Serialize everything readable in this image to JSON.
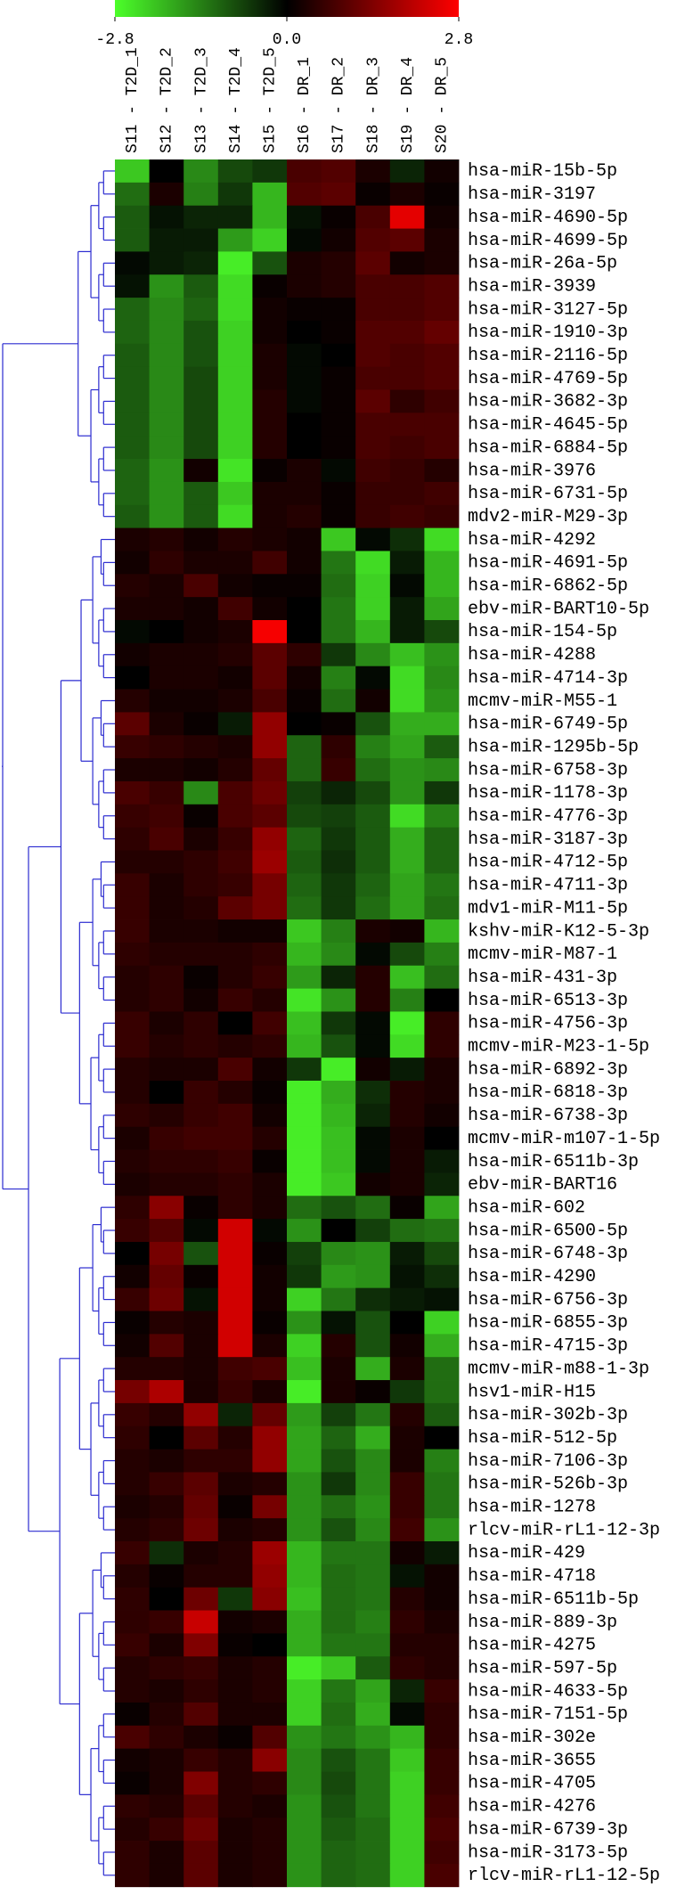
{
  "chart_data": {
    "type": "heatmap",
    "x_categories": [
      "S11 - T2D_1",
      "S12 - T2D_2",
      "S13 - T2D_3",
      "S14 - T2D_4",
      "S15 - T2D_5",
      "S16 - DR_1",
      "S17 - DR_2",
      "S18 - DR_3",
      "S19 - DR_4",
      "S20 - DR_5"
    ],
    "y_categories": [
      "hsa-miR-15b-5p",
      "hsa-miR-3197",
      "hsa-miR-4690-5p",
      "hsa-miR-4699-5p",
      "hsa-miR-26a-5p",
      "hsa-miR-3939",
      "hsa-miR-3127-5p",
      "hsa-miR-1910-3p",
      "hsa-miR-2116-5p",
      "hsa-miR-4769-5p",
      "hsa-miR-3682-3p",
      "hsa-miR-4645-5p",
      "hsa-miR-6884-5p",
      "hsa-miR-3976",
      "hsa-miR-6731-5p",
      "mdv2-miR-M29-3p",
      "hsa-miR-4292",
      "hsa-miR-4691-5p",
      "hsa-miR-6862-5p",
      "ebv-miR-BART10-5p",
      "hsa-miR-154-5p",
      "hsa-miR-4288",
      "hsa-miR-4714-3p",
      "mcmv-miR-M55-1",
      "hsa-miR-6749-5p",
      "hsa-miR-1295b-5p",
      "hsa-miR-6758-3p",
      "hsa-miR-1178-3p",
      "hsa-miR-4776-3p",
      "hsa-miR-3187-3p",
      "hsa-miR-4712-5p",
      "hsa-miR-4711-3p",
      "mdv1-miR-M11-5p",
      "kshv-miR-K12-5-3p",
      "mcmv-miR-M87-1",
      "hsa-miR-431-3p",
      "hsa-miR-6513-3p",
      "hsa-miR-4756-3p",
      "mcmv-miR-M23-1-5p",
      "hsa-miR-6892-3p",
      "hsa-miR-6818-3p",
      "hsa-miR-6738-3p",
      "mcmv-miR-m107-1-5p",
      "hsa-miR-6511b-3p",
      "ebv-miR-BART16",
      "hsa-miR-602",
      "hsa-miR-6500-5p",
      "hsa-miR-6748-3p",
      "hsa-miR-4290",
      "hsa-miR-6756-3p",
      "hsa-miR-6855-3p",
      "hsa-miR-4715-3p",
      "mcmv-miR-m88-1-3p",
      "hsv1-miR-H15",
      "hsa-miR-302b-3p",
      "hsa-miR-512-5p",
      "hsa-miR-7106-3p",
      "hsa-miR-526b-3p",
      "hsa-miR-1278",
      "rlcv-miR-rL1-12-3p",
      "hsa-miR-429",
      "hsa-miR-4718",
      "hsa-miR-6511b-5p",
      "hsa-miR-889-3p",
      "hsa-miR-4275",
      "hsa-miR-597-5p",
      "hsa-miR-4633-5p",
      "hsa-miR-7151-5p",
      "hsa-miR-302e",
      "hsa-miR-3655",
      "hsa-miR-4705",
      "hsa-miR-4276",
      "hsa-miR-6739-3p",
      "hsa-miR-3173-5p",
      "rlcv-miR-rL1-12-5p"
    ],
    "values": [
      [
        -2.2,
        0.0,
        -1.5,
        -0.8,
        -0.6,
        0.8,
        0.9,
        0.3,
        -0.4,
        0.2
      ],
      [
        -1.2,
        0.3,
        -1.4,
        -0.6,
        -2.0,
        0.9,
        1.0,
        0.1,
        0.3,
        0.1
      ],
      [
        -1.0,
        -0.2,
        -0.4,
        -0.4,
        -2.0,
        -0.2,
        0.1,
        0.8,
        2.5,
        0.2
      ],
      [
        -1.0,
        -0.3,
        -0.3,
        -1.7,
        -2.3,
        -0.1,
        0.2,
        0.9,
        1.0,
        0.3
      ],
      [
        -0.1,
        -0.3,
        -0.4,
        -2.6,
        -0.9,
        0.3,
        0.4,
        1.0,
        0.2,
        0.3
      ],
      [
        -0.2,
        -1.6,
        -1.0,
        -2.4,
        0.1,
        0.3,
        0.4,
        0.8,
        0.8,
        0.9
      ],
      [
        -1.1,
        -1.5,
        -1.1,
        -2.4,
        0.2,
        0.1,
        0.1,
        0.8,
        0.8,
        0.9
      ],
      [
        -1.1,
        -1.5,
        -0.9,
        -2.3,
        0.2,
        0.0,
        0.1,
        0.9,
        0.9,
        1.1
      ],
      [
        -1.0,
        -1.5,
        -0.9,
        -2.3,
        0.3,
        -0.1,
        0.0,
        0.9,
        0.8,
        0.9
      ],
      [
        -1.0,
        -1.5,
        -0.8,
        -2.3,
        0.3,
        -0.1,
        0.1,
        0.8,
        0.8,
        0.9
      ],
      [
        -1.0,
        -1.5,
        -0.8,
        -2.3,
        0.4,
        -0.1,
        0.1,
        1.0,
        0.5,
        0.7
      ],
      [
        -1.0,
        -1.5,
        -0.8,
        -2.3,
        0.4,
        0.0,
        0.1,
        0.8,
        0.8,
        0.8
      ],
      [
        -1.0,
        -1.5,
        -0.8,
        -2.3,
        0.4,
        0.0,
        0.1,
        0.8,
        0.7,
        0.8
      ],
      [
        -1.1,
        -1.6,
        0.2,
        -2.5,
        0.1,
        0.3,
        -0.1,
        0.7,
        0.6,
        0.4
      ],
      [
        -1.1,
        -1.6,
        -1.0,
        -2.2,
        0.3,
        0.3,
        0.1,
        0.6,
        0.6,
        0.7
      ],
      [
        -1.0,
        -1.6,
        -1.0,
        -2.4,
        0.3,
        0.4,
        0.1,
        0.6,
        0.7,
        0.6
      ],
      [
        0.3,
        0.4,
        0.2,
        0.4,
        0.3,
        0.2,
        -2.2,
        -0.1,
        -0.5,
        -2.4
      ],
      [
        0.2,
        0.5,
        0.3,
        0.3,
        0.7,
        0.2,
        -1.3,
        -2.4,
        -0.3,
        -2.0
      ],
      [
        0.4,
        0.3,
        0.8,
        0.2,
        0.1,
        0.1,
        -1.2,
        -2.3,
        -0.1,
        -2.0
      ],
      [
        0.3,
        0.3,
        0.2,
        0.7,
        0.2,
        0.0,
        -1.3,
        -2.3,
        -0.3,
        -1.8
      ],
      [
        -0.1,
        0.0,
        0.2,
        0.3,
        2.7,
        0.0,
        -1.3,
        -2.0,
        -0.3,
        -0.8
      ],
      [
        0.2,
        0.3,
        0.3,
        0.4,
        1.0,
        0.5,
        -0.6,
        -1.5,
        -2.1,
        -1.6
      ],
      [
        0.0,
        0.3,
        0.3,
        0.2,
        1.0,
        0.2,
        -1.4,
        -0.1,
        -2.4,
        -1.5
      ],
      [
        0.4,
        0.2,
        0.2,
        0.3,
        0.8,
        0.1,
        -1.2,
        0.2,
        -2.4,
        -1.6
      ],
      [
        1.0,
        0.3,
        0.1,
        -0.3,
        1.6,
        0.0,
        0.1,
        -0.9,
        -1.9,
        -1.9
      ],
      [
        0.6,
        0.5,
        0.4,
        0.3,
        1.6,
        -1.1,
        0.5,
        -1.4,
        -1.8,
        -1.0
      ],
      [
        0.3,
        0.3,
        0.2,
        0.4,
        1.1,
        -1.1,
        0.6,
        -1.2,
        -1.6,
        -1.5
      ],
      [
        0.8,
        0.6,
        -1.5,
        0.8,
        1.2,
        -0.7,
        -0.4,
        -0.8,
        -1.6,
        -0.6
      ],
      [
        0.6,
        0.7,
        0.1,
        0.8,
        1.0,
        -0.8,
        -0.7,
        -1.0,
        -2.4,
        -1.4
      ],
      [
        0.5,
        0.8,
        0.3,
        0.6,
        1.6,
        -1.1,
        -0.6,
        -1.0,
        -1.9,
        -1.1
      ],
      [
        0.4,
        0.4,
        0.5,
        0.7,
        1.7,
        -1.0,
        -0.5,
        -1.0,
        -1.9,
        -1.1
      ],
      [
        0.6,
        0.3,
        0.5,
        0.6,
        1.3,
        -1.1,
        -0.6,
        -1.1,
        -1.8,
        -1.3
      ],
      [
        0.6,
        0.3,
        0.4,
        1.0,
        1.3,
        -1.2,
        -0.6,
        -1.2,
        -1.8,
        -1.2
      ],
      [
        0.6,
        0.3,
        0.3,
        0.2,
        0.2,
        -2.2,
        -1.4,
        0.3,
        0.2,
        -2.0
      ],
      [
        0.5,
        0.4,
        0.4,
        0.4,
        0.5,
        -2.0,
        -1.5,
        -0.1,
        -0.8,
        -1.4
      ],
      [
        0.4,
        0.5,
        0.1,
        0.4,
        0.6,
        -1.7,
        -0.4,
        0.4,
        -2.1,
        -1.2
      ],
      [
        0.4,
        0.5,
        0.2,
        0.6,
        0.4,
        -2.5,
        -1.6,
        0.4,
        -1.4,
        0.0
      ],
      [
        0.6,
        0.3,
        0.5,
        0.0,
        0.7,
        -2.1,
        -0.6,
        -0.1,
        -2.6,
        0.5
      ],
      [
        0.6,
        0.4,
        0.5,
        0.4,
        0.5,
        -2.0,
        -0.9,
        -0.1,
        -2.4,
        0.5
      ],
      [
        0.4,
        0.3,
        0.3,
        0.8,
        0.2,
        -0.6,
        -2.6,
        0.2,
        -0.3,
        0.3
      ],
      [
        0.4,
        0.0,
        0.6,
        0.4,
        0.1,
        -2.6,
        -1.9,
        -0.5,
        0.4,
        0.3
      ],
      [
        0.5,
        0.4,
        0.6,
        0.7,
        0.2,
        -2.6,
        -2.0,
        -0.4,
        0.4,
        0.2
      ],
      [
        0.3,
        0.6,
        0.7,
        0.7,
        0.4,
        -2.6,
        -2.1,
        -0.1,
        0.3,
        0.0
      ],
      [
        0.4,
        0.5,
        0.5,
        0.6,
        0.1,
        -2.6,
        -2.1,
        -0.1,
        0.3,
        -0.3
      ],
      [
        0.3,
        0.4,
        0.4,
        0.5,
        0.3,
        -2.6,
        -2.2,
        0.2,
        0.3,
        -0.4
      ],
      [
        0.5,
        1.5,
        0.1,
        0.5,
        0.3,
        -1.2,
        -0.9,
        -1.2,
        0.1,
        -1.8
      ],
      [
        0.6,
        0.9,
        -0.1,
        2.3,
        -0.1,
        -1.6,
        0.0,
        -0.7,
        -1.2,
        -1.3
      ],
      [
        0.0,
        1.3,
        -0.9,
        2.3,
        0.1,
        -0.7,
        -1.5,
        -1.6,
        -0.3,
        -0.8
      ],
      [
        0.2,
        1.1,
        0.1,
        2.3,
        0.2,
        -0.6,
        -1.7,
        -1.6,
        -0.2,
        -0.5
      ],
      [
        0.6,
        1.2,
        -0.2,
        2.3,
        0.2,
        -2.3,
        -1.3,
        -0.5,
        -0.3,
        -0.2
      ],
      [
        0.1,
        0.4,
        0.3,
        2.3,
        0.1,
        -1.6,
        -0.2,
        -0.9,
        0.0,
        -2.3
      ],
      [
        0.2,
        0.9,
        0.3,
        2.3,
        0.3,
        -2.3,
        0.4,
        -0.9,
        0.2,
        -1.9
      ],
      [
        0.4,
        0.4,
        0.3,
        0.7,
        0.8,
        -2.1,
        0.3,
        -1.9,
        0.3,
        -1.2
      ],
      [
        1.3,
        1.9,
        0.3,
        0.6,
        0.3,
        -2.6,
        0.3,
        0.1,
        -0.6,
        -1.2
      ],
      [
        0.6,
        0.4,
        1.6,
        -0.4,
        1.1,
        -1.7,
        -0.7,
        -1.3,
        0.4,
        -1.0
      ],
      [
        0.5,
        0.0,
        1.0,
        0.4,
        1.6,
        -1.8,
        -1.1,
        -1.9,
        0.3,
        0.0
      ],
      [
        0.4,
        0.3,
        0.5,
        0.5,
        1.6,
        -1.8,
        -0.9,
        -1.5,
        0.3,
        -1.4
      ],
      [
        0.4,
        0.6,
        1.0,
        0.3,
        0.4,
        -1.6,
        -0.6,
        -1.5,
        0.6,
        -1.3
      ],
      [
        0.3,
        0.4,
        1.1,
        0.1,
        1.3,
        -1.6,
        -1.2,
        -1.6,
        0.6,
        -1.3
      ],
      [
        0.4,
        0.5,
        1.2,
        0.3,
        0.4,
        -1.6,
        -0.9,
        -1.5,
        0.7,
        -1.6
      ],
      [
        0.6,
        -0.5,
        0.3,
        0.4,
        1.7,
        -2.0,
        -1.3,
        -1.3,
        0.2,
        -0.3
      ],
      [
        0.4,
        0.1,
        0.4,
        0.4,
        1.6,
        -2.0,
        -1.2,
        -1.3,
        -0.2,
        0.2
      ],
      [
        0.5,
        0.0,
        1.2,
        -0.6,
        1.5,
        -2.1,
        -1.2,
        -1.3,
        0.4,
        0.2
      ],
      [
        0.5,
        0.6,
        2.2,
        0.2,
        0.3,
        -1.9,
        -1.2,
        -1.4,
        0.5,
        0.3
      ],
      [
        0.6,
        0.3,
        1.4,
        0.1,
        0.0,
        -1.9,
        -1.3,
        -1.3,
        0.4,
        0.4
      ],
      [
        0.4,
        0.5,
        0.6,
        0.3,
        0.4,
        -2.6,
        -2.2,
        -1.0,
        0.5,
        0.4
      ],
      [
        0.4,
        0.3,
        0.5,
        0.3,
        0.4,
        -2.3,
        -1.3,
        -1.8,
        -0.4,
        0.6
      ],
      [
        0.1,
        0.4,
        0.9,
        0.3,
        0.3,
        -2.3,
        -1.2,
        -1.9,
        -0.1,
        0.5
      ],
      [
        0.8,
        0.5,
        0.3,
        0.1,
        0.9,
        -1.6,
        -1.3,
        -1.6,
        -2.0,
        0.5
      ],
      [
        0.2,
        0.3,
        0.6,
        0.4,
        1.5,
        -1.5,
        -0.9,
        -1.3,
        -2.2,
        0.6
      ],
      [
        0.1,
        0.3,
        1.4,
        0.4,
        0.5,
        -1.5,
        -0.8,
        -1.3,
        -2.3,
        0.6
      ],
      [
        0.5,
        0.4,
        1.0,
        0.4,
        0.3,
        -1.6,
        -0.9,
        -1.3,
        -2.3,
        0.7
      ],
      [
        0.4,
        0.6,
        1.2,
        0.3,
        0.4,
        -1.6,
        -1.0,
        -1.2,
        -2.3,
        0.8
      ],
      [
        0.5,
        0.3,
        1.0,
        0.3,
        0.4,
        -1.6,
        -1.1,
        -1.2,
        -2.3,
        0.7
      ],
      [
        0.5,
        0.3,
        1.0,
        0.3,
        0.4,
        -1.6,
        -1.1,
        -1.2,
        -2.3,
        0.8
      ]
    ],
    "zlim": [
      -2.8,
      2.8
    ],
    "zticks": [
      -2.8,
      {
        "value": 0,
        "label": "0.0"
      },
      2.8
    ],
    "colorscale": [
      "#4cff2a",
      "#000000",
      "#ff0000"
    ],
    "dendrogram_color": "#2b2bd0"
  }
}
